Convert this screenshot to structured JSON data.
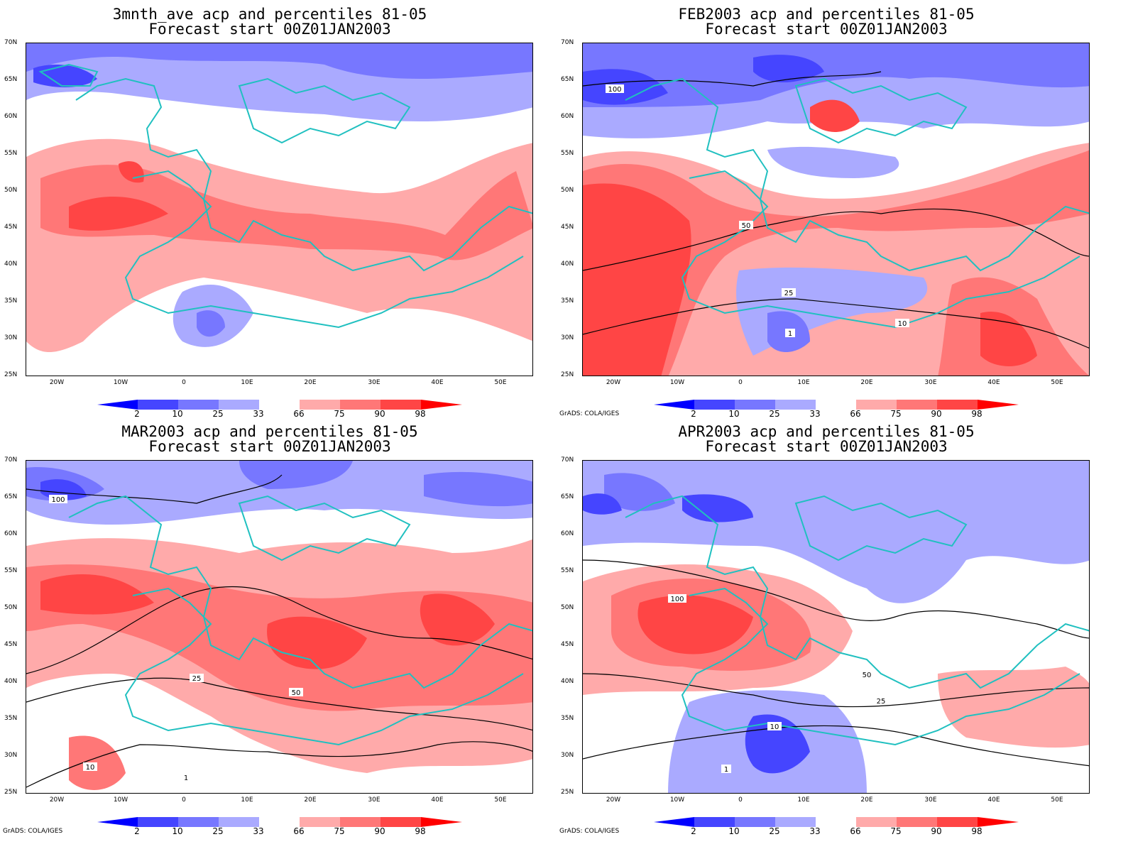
{
  "panels": [
    {
      "title_line1": "3mnth_ave acp and percentiles 81-05",
      "title_line2": "Forecast start 00Z01JAN2003",
      "contours": false
    },
    {
      "title_line1": "FEB2003 acp and percentiles 81-05",
      "title_line2": "Forecast start 00Z01JAN2003",
      "contours": true
    },
    {
      "title_line1": "MAR2003 acp and percentiles 81-05",
      "title_line2": "Forecast start 00Z01JAN2003",
      "contours": true
    },
    {
      "title_line1": "APR2003 acp and percentiles 81-05",
      "title_line2": "Forecast start 00Z01JAN2003",
      "contours": true
    }
  ],
  "latitude_labels": [
    "70N",
    "65N",
    "60N",
    "55N",
    "50N",
    "45N",
    "40N",
    "35N",
    "30N",
    "25N"
  ],
  "longitude_labels": [
    "20W",
    "10W",
    "0",
    "10E",
    "20E",
    "30E",
    "40E",
    "50E"
  ],
  "colorbar": {
    "labels": [
      "2",
      "10",
      "25",
      "33",
      "66",
      "75",
      "90",
      "98"
    ],
    "colors": [
      "#0000ff",
      "#4545ff",
      "#7777ff",
      "#aaaaff",
      "#ffffff",
      "#ffaaaa",
      "#ff7777",
      "#ff4545",
      "#ff0000"
    ]
  },
  "contour_labels": [
    "100",
    "50",
    "25",
    "10",
    "1"
  ],
  "credit": "GrADS: COLA/IGES",
  "colors": {
    "coastline": "#20c0c0",
    "contour": "#000000"
  }
}
